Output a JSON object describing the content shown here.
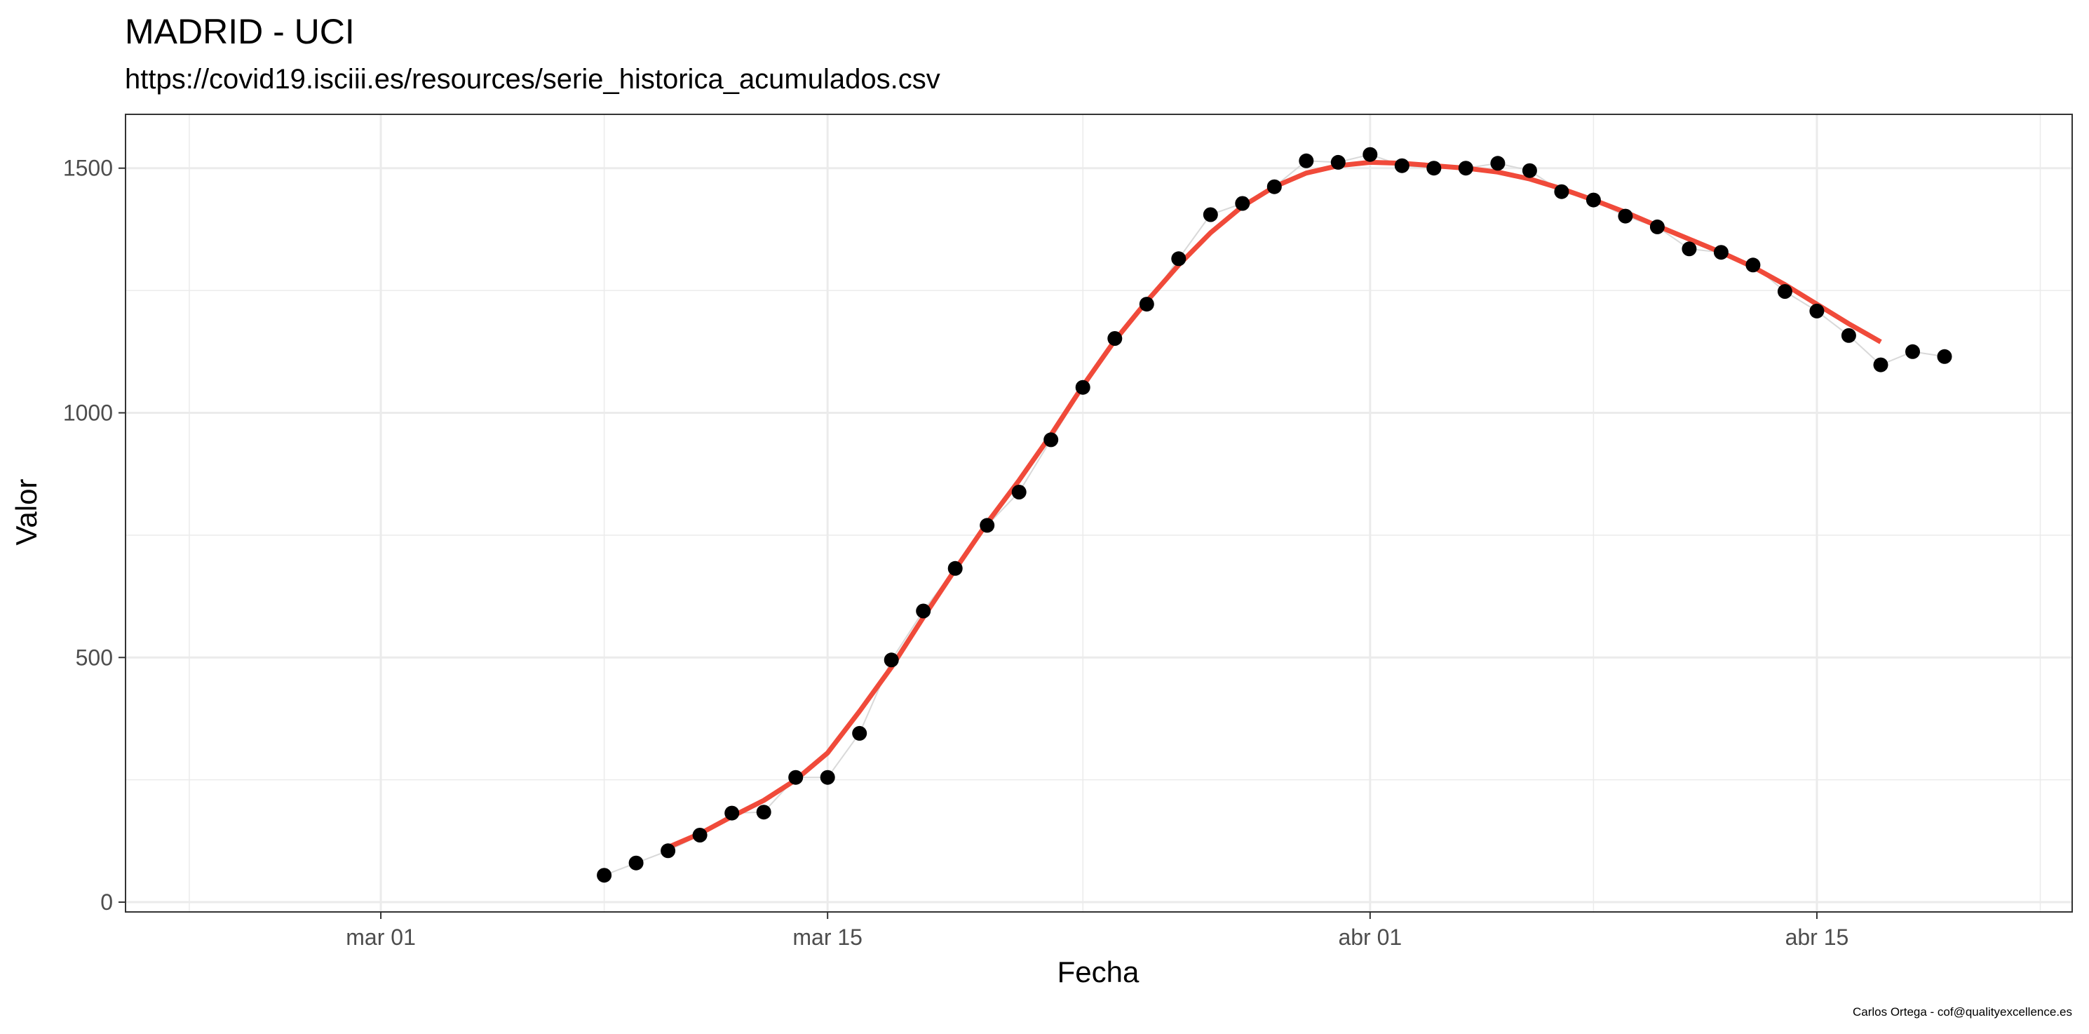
{
  "chart_data": {
    "type": "scatter",
    "title": "MADRID - UCI",
    "subtitle": "https://covid19.isciii.es/resources/serie_historica_acumulados.csv",
    "xlabel": "Fecha",
    "ylabel": "Valor",
    "caption": "Carlos Ortega - cof@qualityexcellence.es",
    "year": 2020,
    "x_range": [
      "2020-02-22",
      "2020-04-23"
    ],
    "ylim": [
      -20,
      1610
    ],
    "x_ticks": [
      {
        "date": "2020-03-01",
        "label": "mar 01"
      },
      {
        "date": "2020-03-15",
        "label": "mar 15"
      },
      {
        "date": "2020-04-01",
        "label": "abr 01"
      },
      {
        "date": "2020-04-15",
        "label": "abr 15"
      }
    ],
    "x_minor_ticks": [
      "2020-02-24",
      "2020-03-08",
      "2020-03-23",
      "2020-04-08",
      "2020-04-22"
    ],
    "y_ticks": [
      0,
      500,
      1000,
      1500
    ],
    "y_minor_ticks": [
      250,
      750,
      1250
    ],
    "grid": true,
    "colors": {
      "points": "#000000",
      "trend": "#f04a3a",
      "connector": "#d9d9d9",
      "grid": "#ebebeb",
      "border": "#333333",
      "tick_label": "#4d4d4d"
    },
    "series": [
      {
        "type": "points",
        "x": [
          "2020-03-08",
          "2020-03-09",
          "2020-03-10",
          "2020-03-11",
          "2020-03-12",
          "2020-03-13",
          "2020-03-14",
          "2020-03-15",
          "2020-03-16",
          "2020-03-17",
          "2020-03-18",
          "2020-03-19",
          "2020-03-20",
          "2020-03-21",
          "2020-03-22",
          "2020-03-23",
          "2020-03-24",
          "2020-03-25",
          "2020-03-26",
          "2020-03-27",
          "2020-03-28",
          "2020-03-29",
          "2020-03-30",
          "2020-03-31",
          "2020-04-01",
          "2020-04-02",
          "2020-04-03",
          "2020-04-04",
          "2020-04-05",
          "2020-04-06",
          "2020-04-07",
          "2020-04-08",
          "2020-04-09",
          "2020-04-10",
          "2020-04-11",
          "2020-04-12",
          "2020-04-13",
          "2020-04-14",
          "2020-04-15",
          "2020-04-16",
          "2020-04-17",
          "2020-04-18",
          "2020-04-19"
        ],
        "y": [
          55,
          80,
          105,
          137,
          182,
          184,
          255,
          255,
          345,
          495,
          595,
          682,
          770,
          838,
          945,
          1052,
          1152,
          1222,
          1315,
          1405,
          1428,
          1462,
          1515,
          1512,
          1528,
          1505,
          1500,
          1500,
          1510,
          1495,
          1452,
          1435,
          1402,
          1380,
          1335,
          1328,
          1302,
          1248,
          1208,
          1158,
          1098,
          1125,
          1115
        ]
      },
      {
        "type": "trend",
        "x": [
          "2020-03-10",
          "2020-03-11",
          "2020-03-12",
          "2020-03-13",
          "2020-03-14",
          "2020-03-15",
          "2020-03-16",
          "2020-03-17",
          "2020-03-18",
          "2020-03-19",
          "2020-03-20",
          "2020-03-21",
          "2020-03-22",
          "2020-03-23",
          "2020-03-24",
          "2020-03-25",
          "2020-03-26",
          "2020-03-27",
          "2020-03-28",
          "2020-03-29",
          "2020-03-30",
          "2020-03-31",
          "2020-04-01",
          "2020-04-02",
          "2020-04-03",
          "2020-04-04",
          "2020-04-05",
          "2020-04-06",
          "2020-04-07",
          "2020-04-08",
          "2020-04-09",
          "2020-04-10",
          "2020-04-11",
          "2020-04-12",
          "2020-04-13",
          "2020-04-14",
          "2020-04-15",
          "2020-04-16",
          "2020-04-17"
        ],
        "y": [
          112,
          140,
          175,
          208,
          250,
          305,
          390,
          480,
          582,
          680,
          775,
          862,
          955,
          1055,
          1148,
          1228,
          1302,
          1368,
          1422,
          1462,
          1490,
          1505,
          1512,
          1510,
          1505,
          1500,
          1492,
          1478,
          1458,
          1435,
          1410,
          1382,
          1355,
          1328,
          1298,
          1262,
          1222,
          1182,
          1145
        ]
      }
    ]
  }
}
